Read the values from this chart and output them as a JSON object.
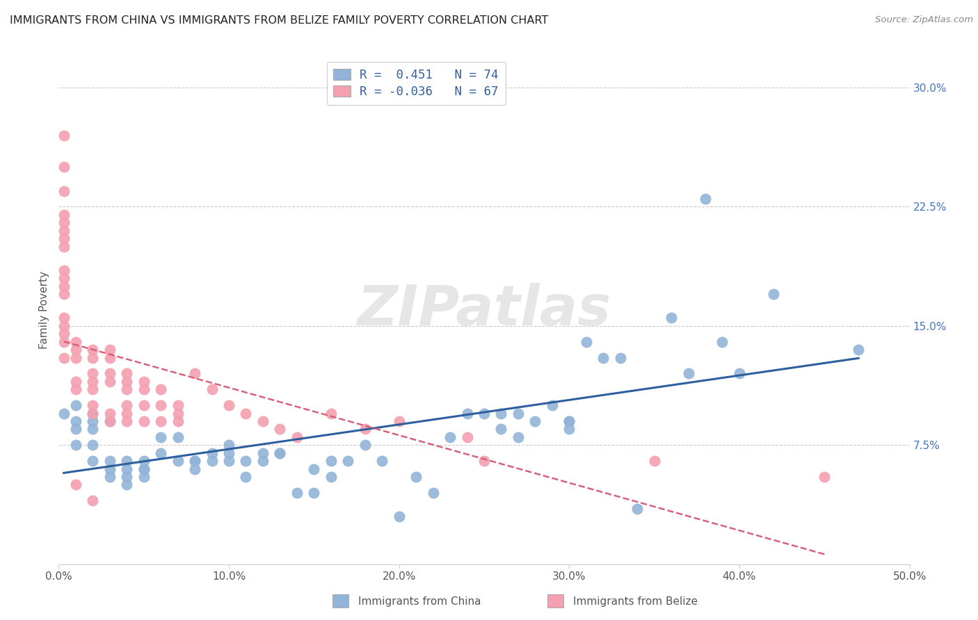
{
  "title": "IMMIGRANTS FROM CHINA VS IMMIGRANTS FROM BELIZE FAMILY POVERTY CORRELATION CHART",
  "source": "Source: ZipAtlas.com",
  "ylabel": "Family Poverty",
  "xlim": [
    0.0,
    0.5
  ],
  "ylim": [
    0.0,
    0.32
  ],
  "xticks": [
    0.0,
    0.1,
    0.2,
    0.3,
    0.4,
    0.5
  ],
  "yticks": [
    0.075,
    0.15,
    0.225,
    0.3
  ],
  "ytick_labels": [
    "7.5%",
    "15.0%",
    "22.5%",
    "30.0%"
  ],
  "xtick_labels": [
    "0.0%",
    "10.0%",
    "20.0%",
    "30.0%",
    "40.0%",
    "50.0%"
  ],
  "legend_labels": [
    "Immigrants from China",
    "Immigrants from Belize"
  ],
  "china_R": 0.451,
  "china_N": 74,
  "belize_R": -0.036,
  "belize_N": 67,
  "china_color": "#92b4d8",
  "belize_color": "#f4a0b0",
  "china_line_color": "#2d5f9e",
  "belize_line_color": "#d9607a",
  "grid_color": "#cccccc",
  "watermark": "ZIPatlas",
  "china_x": [
    0.003,
    0.01,
    0.01,
    0.01,
    0.01,
    0.02,
    0.02,
    0.02,
    0.02,
    0.02,
    0.03,
    0.03,
    0.03,
    0.03,
    0.04,
    0.04,
    0.04,
    0.04,
    0.05,
    0.05,
    0.05,
    0.05,
    0.06,
    0.06,
    0.07,
    0.07,
    0.08,
    0.08,
    0.08,
    0.09,
    0.09,
    0.1,
    0.1,
    0.1,
    0.11,
    0.11,
    0.12,
    0.12,
    0.13,
    0.13,
    0.14,
    0.15,
    0.15,
    0.16,
    0.16,
    0.17,
    0.18,
    0.19,
    0.2,
    0.21,
    0.22,
    0.23,
    0.24,
    0.25,
    0.26,
    0.26,
    0.27,
    0.27,
    0.28,
    0.29,
    0.3,
    0.3,
    0.3,
    0.31,
    0.32,
    0.33,
    0.34,
    0.36,
    0.37,
    0.38,
    0.39,
    0.4,
    0.42,
    0.47
  ],
  "china_y": [
    0.095,
    0.085,
    0.09,
    0.1,
    0.075,
    0.085,
    0.09,
    0.095,
    0.075,
    0.065,
    0.09,
    0.065,
    0.06,
    0.055,
    0.065,
    0.06,
    0.055,
    0.05,
    0.065,
    0.06,
    0.06,
    0.055,
    0.08,
    0.07,
    0.065,
    0.08,
    0.065,
    0.065,
    0.06,
    0.065,
    0.07,
    0.075,
    0.07,
    0.065,
    0.065,
    0.055,
    0.07,
    0.065,
    0.07,
    0.07,
    0.045,
    0.045,
    0.06,
    0.065,
    0.055,
    0.065,
    0.075,
    0.065,
    0.03,
    0.055,
    0.045,
    0.08,
    0.095,
    0.095,
    0.095,
    0.085,
    0.095,
    0.08,
    0.09,
    0.1,
    0.09,
    0.09,
    0.085,
    0.14,
    0.13,
    0.13,
    0.035,
    0.155,
    0.12,
    0.23,
    0.14,
    0.12,
    0.17,
    0.135
  ],
  "belize_x": [
    0.003,
    0.003,
    0.003,
    0.003,
    0.003,
    0.003,
    0.003,
    0.003,
    0.003,
    0.003,
    0.003,
    0.003,
    0.003,
    0.003,
    0.003,
    0.003,
    0.003,
    0.01,
    0.01,
    0.01,
    0.01,
    0.01,
    0.01,
    0.02,
    0.02,
    0.02,
    0.02,
    0.02,
    0.02,
    0.02,
    0.02,
    0.03,
    0.03,
    0.03,
    0.03,
    0.03,
    0.03,
    0.04,
    0.04,
    0.04,
    0.04,
    0.04,
    0.04,
    0.05,
    0.05,
    0.05,
    0.05,
    0.06,
    0.06,
    0.06,
    0.07,
    0.07,
    0.07,
    0.08,
    0.09,
    0.1,
    0.11,
    0.12,
    0.13,
    0.14,
    0.16,
    0.18,
    0.2,
    0.24,
    0.25,
    0.35,
    0.45
  ],
  "belize_y": [
    0.27,
    0.25,
    0.235,
    0.22,
    0.215,
    0.205,
    0.21,
    0.2,
    0.185,
    0.18,
    0.175,
    0.17,
    0.155,
    0.15,
    0.145,
    0.14,
    0.13,
    0.14,
    0.135,
    0.13,
    0.115,
    0.11,
    0.05,
    0.135,
    0.13,
    0.12,
    0.115,
    0.11,
    0.1,
    0.095,
    0.04,
    0.135,
    0.13,
    0.12,
    0.115,
    0.095,
    0.09,
    0.12,
    0.115,
    0.11,
    0.1,
    0.095,
    0.09,
    0.115,
    0.11,
    0.1,
    0.09,
    0.11,
    0.1,
    0.09,
    0.1,
    0.095,
    0.09,
    0.12,
    0.11,
    0.1,
    0.095,
    0.09,
    0.085,
    0.08,
    0.095,
    0.085,
    0.09,
    0.08,
    0.065,
    0.065,
    0.055
  ]
}
